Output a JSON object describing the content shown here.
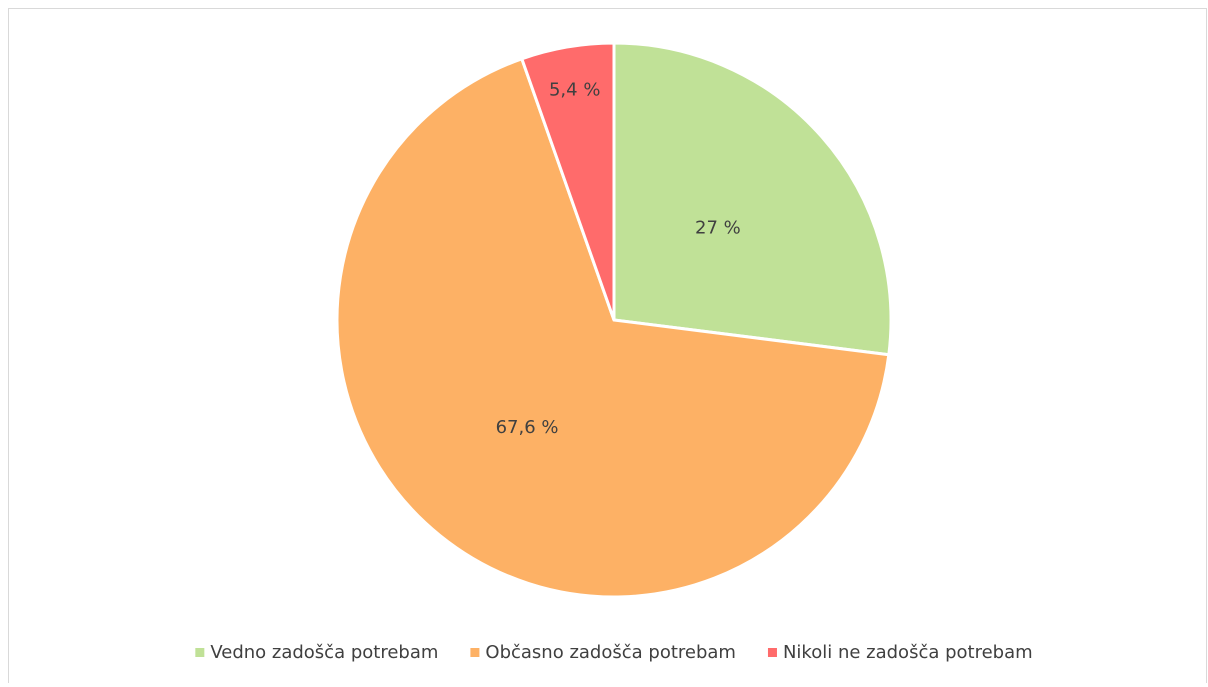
{
  "chart_data": {
    "type": "pie",
    "categories": [
      "Vedno zadošča potrebam",
      "Občasno zadošča potrebam",
      "Nikoli ne zadošča potrebam"
    ],
    "values": [
      27,
      67.6,
      5.4
    ],
    "value_labels": [
      "27 %",
      "67,6 %",
      "5,4 %"
    ],
    "colors": [
      "#c0e197",
      "#fdb165",
      "#ff6b6b"
    ],
    "legend": "bottom"
  }
}
